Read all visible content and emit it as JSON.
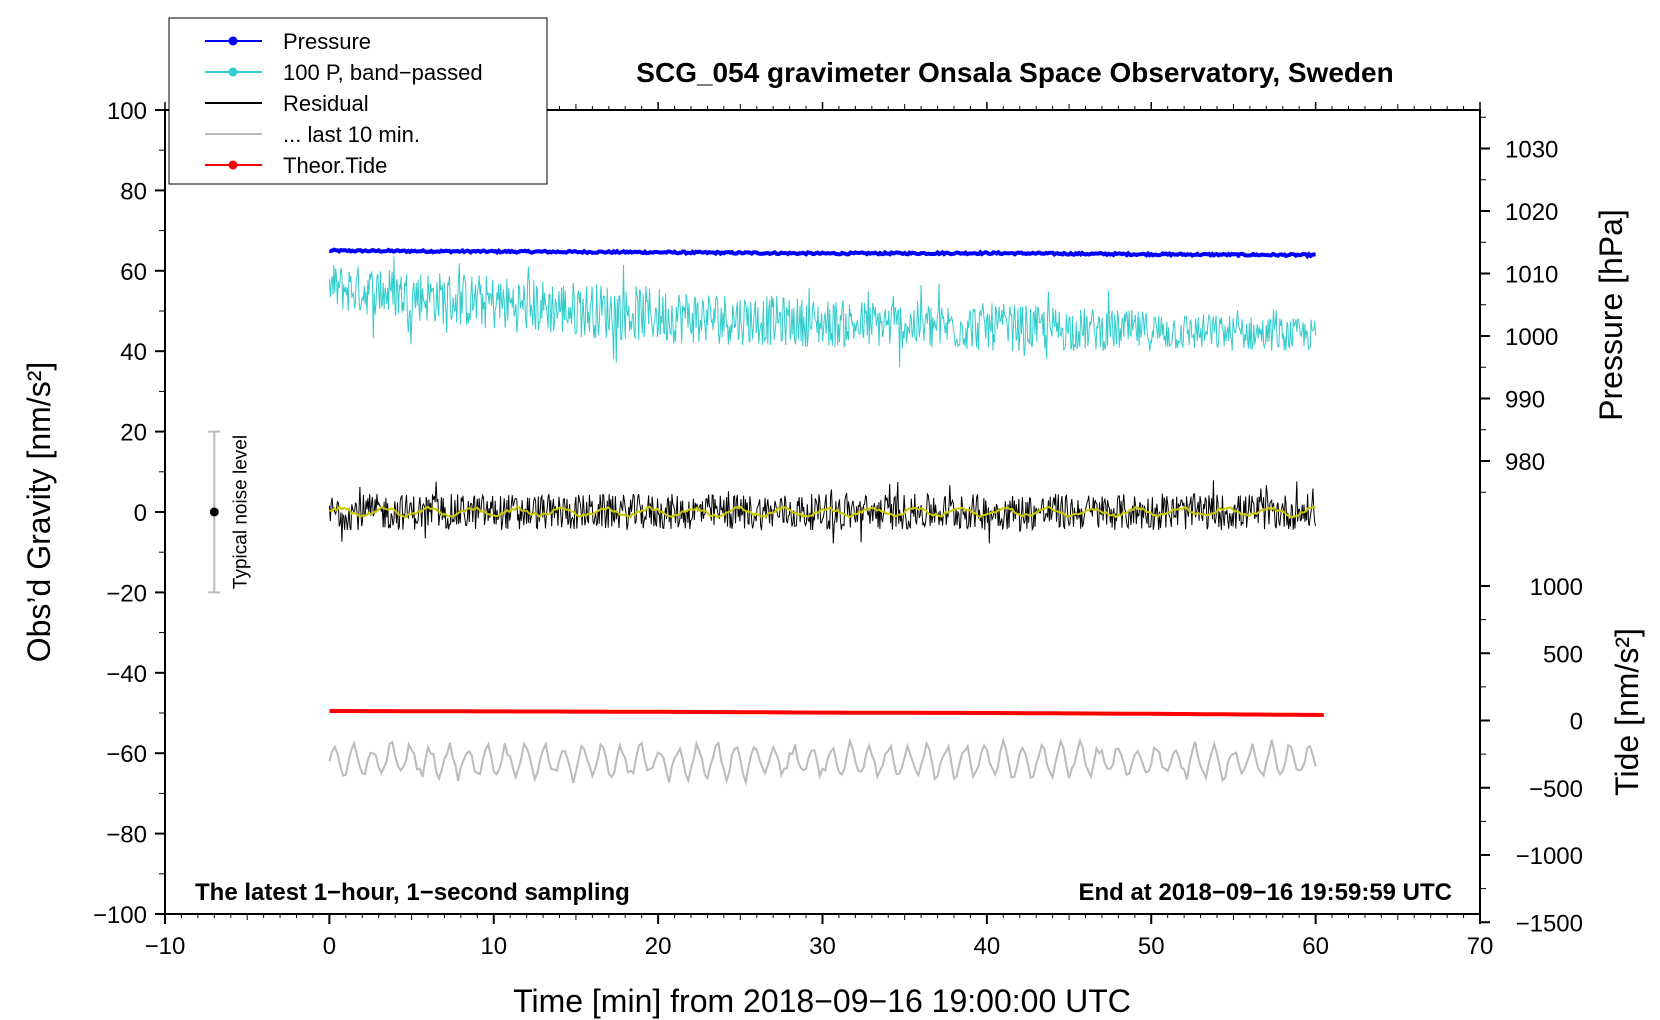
{
  "chart_data": {
    "type": "line",
    "title": "SCG_054 gravimeter Onsala Space Observatory, Sweden",
    "xlabel": "Time [min] from 2018−09−16 19:00:00 UTC",
    "ylabel_left": "Obs’d Gravity [nm/s²]",
    "ylabel_right_pressure": "Pressure [hPa]",
    "ylabel_right_tide": "Tide [nm/s²]",
    "note_left": "The latest 1−hour, 1−second sampling",
    "note_right": "End at 2018−09−16 19:59:59 UTC",
    "noise_label": "Typical noise level",
    "xlim": [
      -10,
      70
    ],
    "ylim_left": [
      -100,
      100
    ],
    "x_ticks": [
      {
        "value": -10,
        "label": "−10"
      },
      {
        "value": 0,
        "label": "0"
      },
      {
        "value": 10,
        "label": "10"
      },
      {
        "value": 20,
        "label": "20"
      },
      {
        "value": 30,
        "label": "30"
      },
      {
        "value": 40,
        "label": "40"
      },
      {
        "value": 50,
        "label": "50"
      },
      {
        "value": 60,
        "label": "60"
      },
      {
        "value": 70,
        "label": "70"
      }
    ],
    "y_ticks_left": [
      {
        "value": 100,
        "label": "100"
      },
      {
        "value": 80,
        "label": "80"
      },
      {
        "value": 60,
        "label": "60"
      },
      {
        "value": 40,
        "label": "40"
      },
      {
        "value": 20,
        "label": "20"
      },
      {
        "value": 0,
        "label": "0"
      },
      {
        "value": -20,
        "label": "−20"
      },
      {
        "value": -40,
        "label": "−40"
      },
      {
        "value": -60,
        "label": "−60"
      },
      {
        "value": -80,
        "label": "−80"
      },
      {
        "value": -100,
        "label": "−100"
      }
    ],
    "pressure_axis": {
      "ticks": [
        {
          "value": 1030,
          "label": "1030"
        },
        {
          "value": 1020,
          "label": "1020"
        },
        {
          "value": 1010,
          "label": "1010"
        },
        {
          "value": 1000,
          "label": "1000"
        },
        {
          "value": 990,
          "label": "990"
        },
        {
          "value": 980,
          "label": "980"
        }
      ]
    },
    "tide_axis": {
      "ticks": [
        {
          "value": 1000,
          "label": "1000"
        },
        {
          "value": 500,
          "label": "500"
        },
        {
          "value": 0,
          "label": "0"
        },
        {
          "value": -500,
          "label": "−500"
        },
        {
          "value": -1000,
          "label": "−1000"
        },
        {
          "value": -1500,
          "label": "−1500"
        }
      ]
    },
    "legend": {
      "position": "top-left",
      "entries": [
        {
          "label": "Pressure",
          "color": "#0000ff",
          "marker": true
        },
        {
          "label": "100 P, band−passed",
          "color": "#33cccc",
          "marker": true
        },
        {
          "label": "Residual",
          "color": "#000000",
          "marker": false
        },
        {
          "label": "... last 10 min.",
          "color": "#bbbbbb",
          "marker": false
        },
        {
          "label": "Theor.Tide",
          "color": "#ff0000",
          "marker": true
        }
      ]
    },
    "series": [
      {
        "name": "Pressure",
        "color": "#0000ff",
        "axis": "left",
        "x": [
          0,
          10,
          20,
          30,
          40,
          50,
          60
        ],
        "y": [
          65,
          64.8,
          64.6,
          64.3,
          64.4,
          64.1,
          63.9
        ]
      },
      {
        "name": "100 P, band−passed",
        "color": "#33cccc",
        "axis": "left",
        "x": [
          0,
          10,
          20,
          30,
          40,
          50,
          60
        ],
        "y": [
          56,
          52,
          49,
          47,
          46,
          45,
          44
        ],
        "amplitude": [
          6,
          7,
          7,
          6,
          6,
          5,
          4
        ]
      },
      {
        "name": "Residual",
        "color": "#000000",
        "axis": "left",
        "x": [
          0,
          10,
          20,
          30,
          40,
          50,
          60
        ],
        "y": [
          0,
          0,
          0,
          0,
          0,
          0,
          0
        ],
        "amplitude": [
          4.5,
          4.5,
          4.5,
          4.5,
          4.5,
          4.5,
          4.5
        ]
      },
      {
        "name": "... last 10 min.",
        "color": "#bbbbbb",
        "axis": "left",
        "x": [
          0,
          10,
          20,
          30,
          40,
          50,
          60
        ],
        "y": [
          -62,
          -62,
          -62,
          -62,
          -62,
          -62,
          -62
        ],
        "amplitude": [
          4.5,
          4.5,
          4.5,
          4.5,
          4.5,
          4.5,
          4.5
        ]
      },
      {
        "name": "Theor.Tide",
        "color": "#ff0000",
        "axis": "left",
        "x": [
          0,
          10,
          20,
          30,
          40,
          50,
          60.5
        ],
        "y": [
          -49.5,
          -49.6,
          -49.7,
          -49.9,
          -50,
          -50.2,
          -50.5
        ]
      }
    ],
    "noise_level": {
      "x": -7,
      "center": 0,
      "range": [
        -20,
        20
      ]
    }
  }
}
